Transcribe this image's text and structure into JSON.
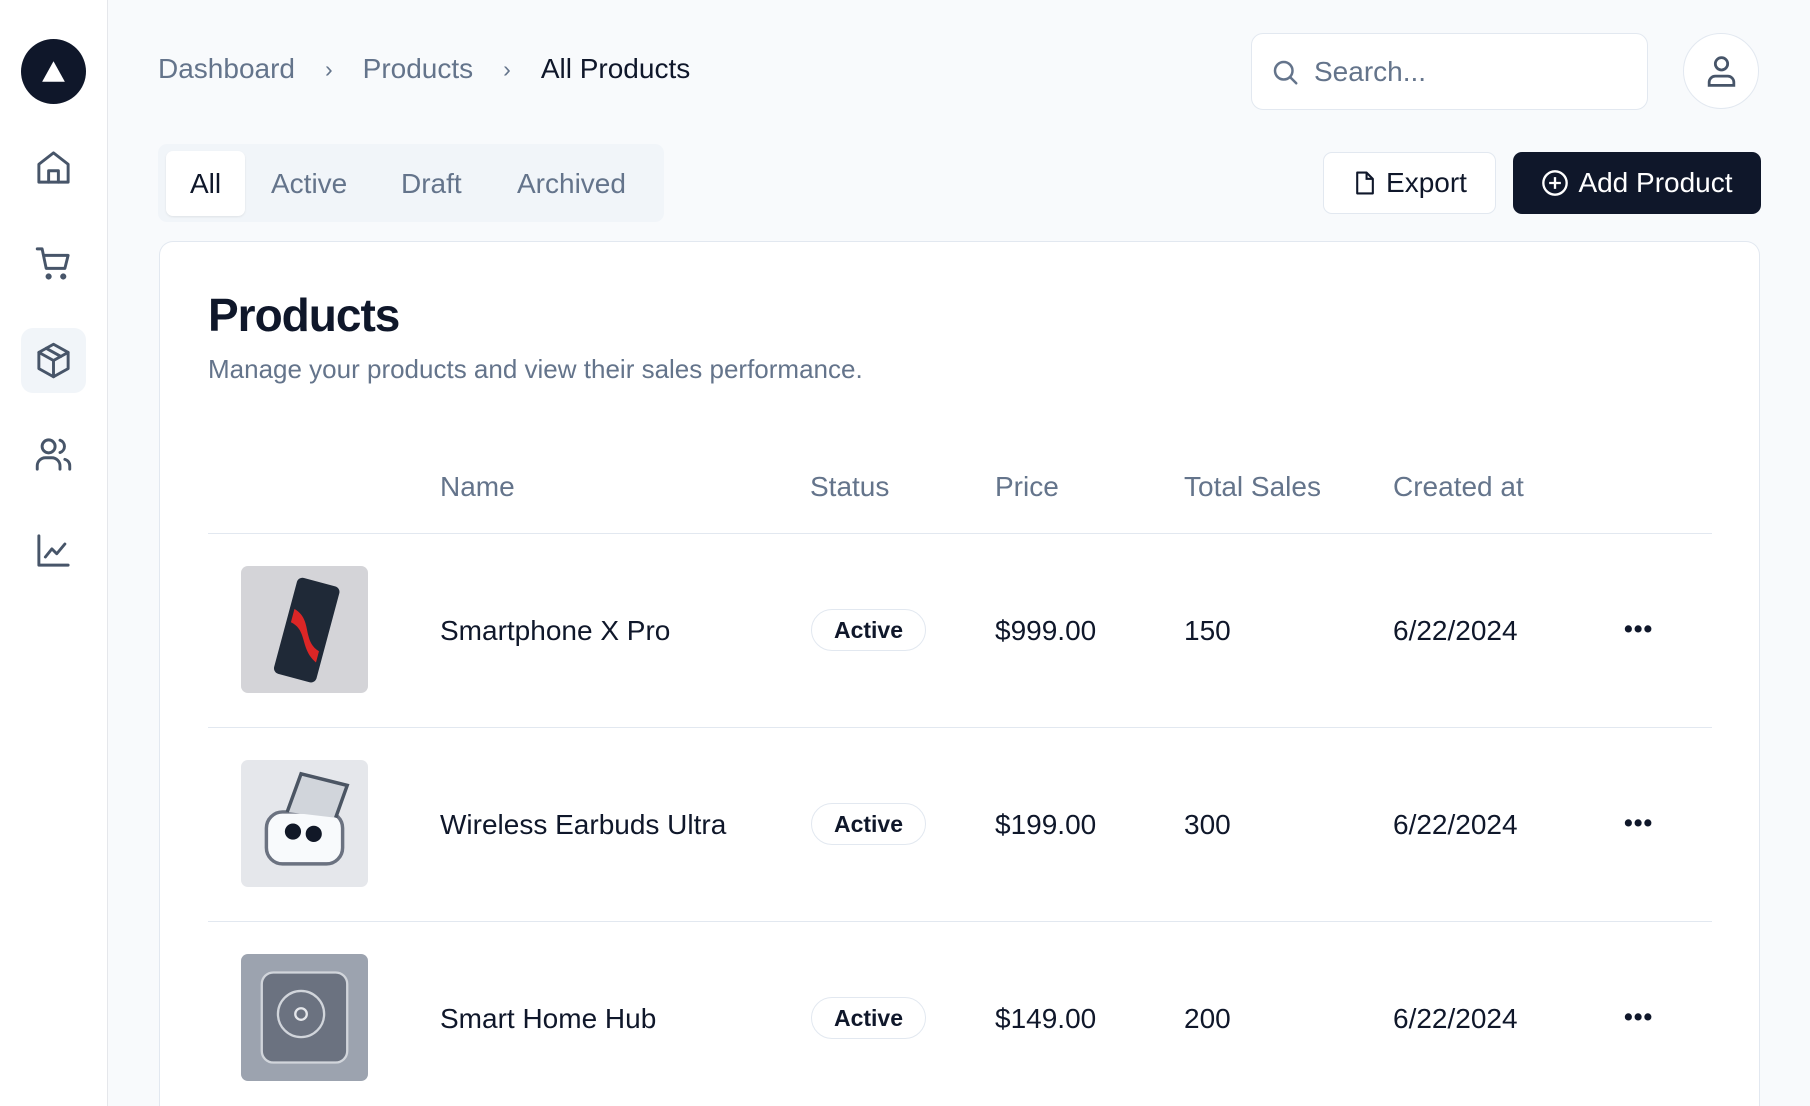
{
  "breadcrumb": [
    "Dashboard",
    "Products",
    "All Products"
  ],
  "search": {
    "placeholder": "Search..."
  },
  "tabs": [
    "All",
    "Active",
    "Draft",
    "Archived"
  ],
  "selected_tab": "All",
  "actions": {
    "export": "Export",
    "add": "Add Product"
  },
  "card": {
    "title": "Products",
    "subtitle": "Manage your products and view their sales performance."
  },
  "table": {
    "headers": [
      "Name",
      "Status",
      "Price",
      "Total Sales",
      "Created at"
    ],
    "rows": [
      {
        "name": "Smartphone X Pro",
        "status": "Active",
        "price": "$999.00",
        "sales": "150",
        "created": "6/22/2024",
        "actions": "•••"
      },
      {
        "name": "Wireless Earbuds Ultra",
        "status": "Active",
        "price": "$199.00",
        "sales": "300",
        "created": "6/22/2024",
        "actions": "•••"
      },
      {
        "name": "Smart Home Hub",
        "status": "Active",
        "price": "$149.00",
        "sales": "200",
        "created": "6/22/2024",
        "actions": "•••"
      }
    ]
  },
  "colors": {
    "primary": "#0f172a",
    "muted": "#64748b",
    "border": "#e2e8f0"
  }
}
